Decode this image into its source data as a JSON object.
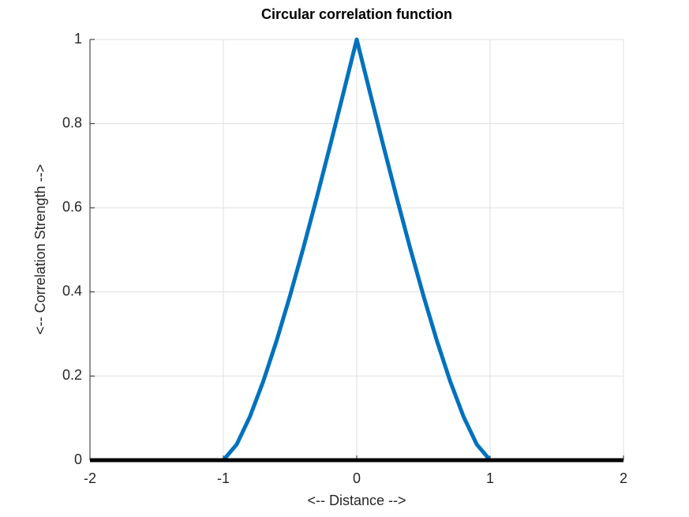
{
  "chart_data": {
    "type": "line",
    "title": "Circular correlation function",
    "x_label": "<-- Distance -->",
    "y_label": "<-- Correlation Strength -->",
    "series": [
      {
        "color": "#0072bd",
        "x": [
          -1,
          -0.9,
          -0.8,
          -0.7,
          -0.6,
          -0.5,
          -0.4,
          -0.3,
          -0.2,
          -0.1,
          0,
          0.1,
          0.2,
          0.3,
          0.4,
          0.5,
          0.6,
          0.7,
          0.8,
          0.9,
          1
        ],
        "values": [
          0,
          0.0374,
          0.1041,
          0.1881,
          0.2848,
          0.391,
          0.5047,
          0.6238,
          0.747,
          0.8729,
          1,
          0.8729,
          0.747,
          0.6238,
          0.5047,
          0.391,
          0.2848,
          0.1881,
          0.1041,
          0.0374,
          0
        ]
      },
      {
        "color": "#000000",
        "x": [
          -2,
          2
        ],
        "values": [
          0,
          0
        ]
      }
    ],
    "xlim": [
      -2,
      2
    ],
    "xticks": [
      -2,
      -1,
      0,
      1,
      2
    ],
    "ylim": [
      0,
      1
    ],
    "yticks": [
      0,
      0.2,
      0.4,
      0.6,
      0.8,
      1
    ],
    "grid": true
  }
}
